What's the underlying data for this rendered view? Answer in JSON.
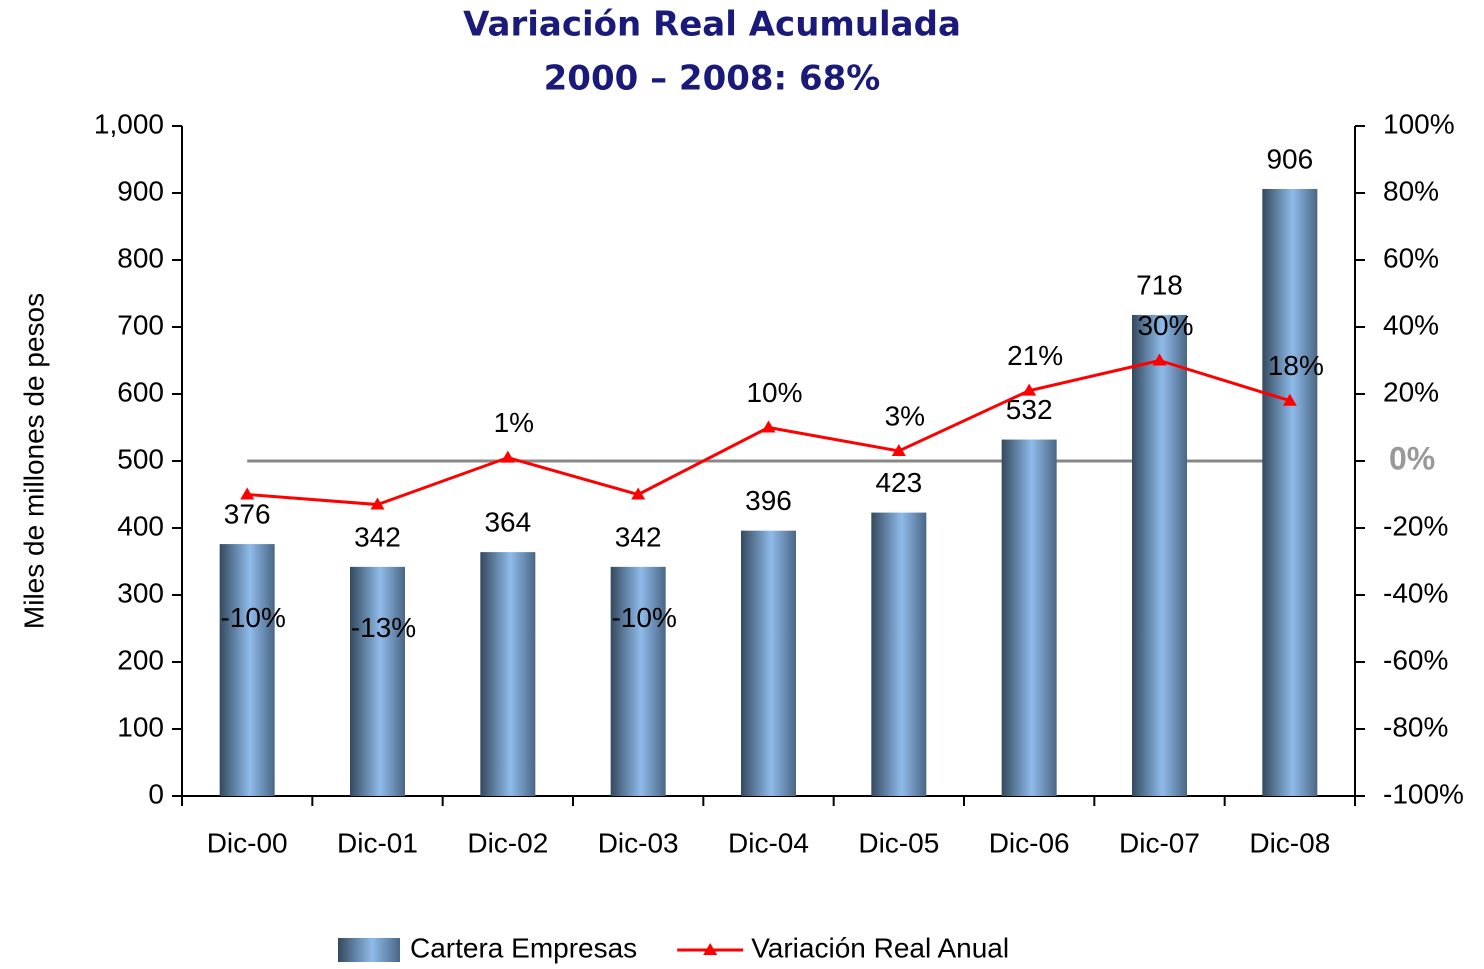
{
  "chart_data": {
    "type": "bar",
    "title": "Variación Real Acumulada",
    "subtitle": "2000 – 2008: 68%",
    "ylabel": "Miles de millones de pesos",
    "categories": [
      "Dic-00",
      "Dic-01",
      "Dic-02",
      "Dic-03",
      "Dic-04",
      "Dic-05",
      "Dic-06",
      "Dic-07",
      "Dic-08"
    ],
    "series": [
      {
        "name": "Cartera Empresas",
        "type": "bar",
        "color": "#8fbbea",
        "values": [
          376,
          342,
          364,
          342,
          396,
          423,
          532,
          718,
          906
        ]
      },
      {
        "name": "Variación Real Anual",
        "type": "line",
        "axis": "y2",
        "color": "#ff0000",
        "values": [
          -10,
          -13,
          1,
          -10,
          10,
          3,
          21,
          30,
          18
        ],
        "value_labels": [
          "-10%",
          "-13%",
          "1%",
          "-10%",
          "10%",
          "3%",
          "21%",
          "30%",
          "18%"
        ]
      }
    ],
    "ylim": [
      0,
      1000
    ],
    "yticks": [
      0,
      100,
      200,
      300,
      400,
      500,
      600,
      700,
      800,
      900,
      {
        "value": 1000,
        "label": "1,000"
      }
    ],
    "y2lim": [
      -100,
      100
    ],
    "y2ticks": [
      {
        "value": -100,
        "label": "-100%"
      },
      {
        "value": -80,
        "label": "-80%"
      },
      {
        "value": -60,
        "label": "-60%"
      },
      {
        "value": -40,
        "label": "-40%"
      },
      {
        "value": -20,
        "label": "-20%"
      },
      {
        "value": 0,
        "label": "0%"
      },
      {
        "value": 20,
        "label": "20%"
      },
      {
        "value": 40,
        "label": "40%"
      },
      {
        "value": 60,
        "label": "60%"
      },
      {
        "value": 80,
        "label": "80%"
      },
      {
        "value": 100,
        "label": "100%"
      }
    ],
    "legend": "bottom"
  }
}
